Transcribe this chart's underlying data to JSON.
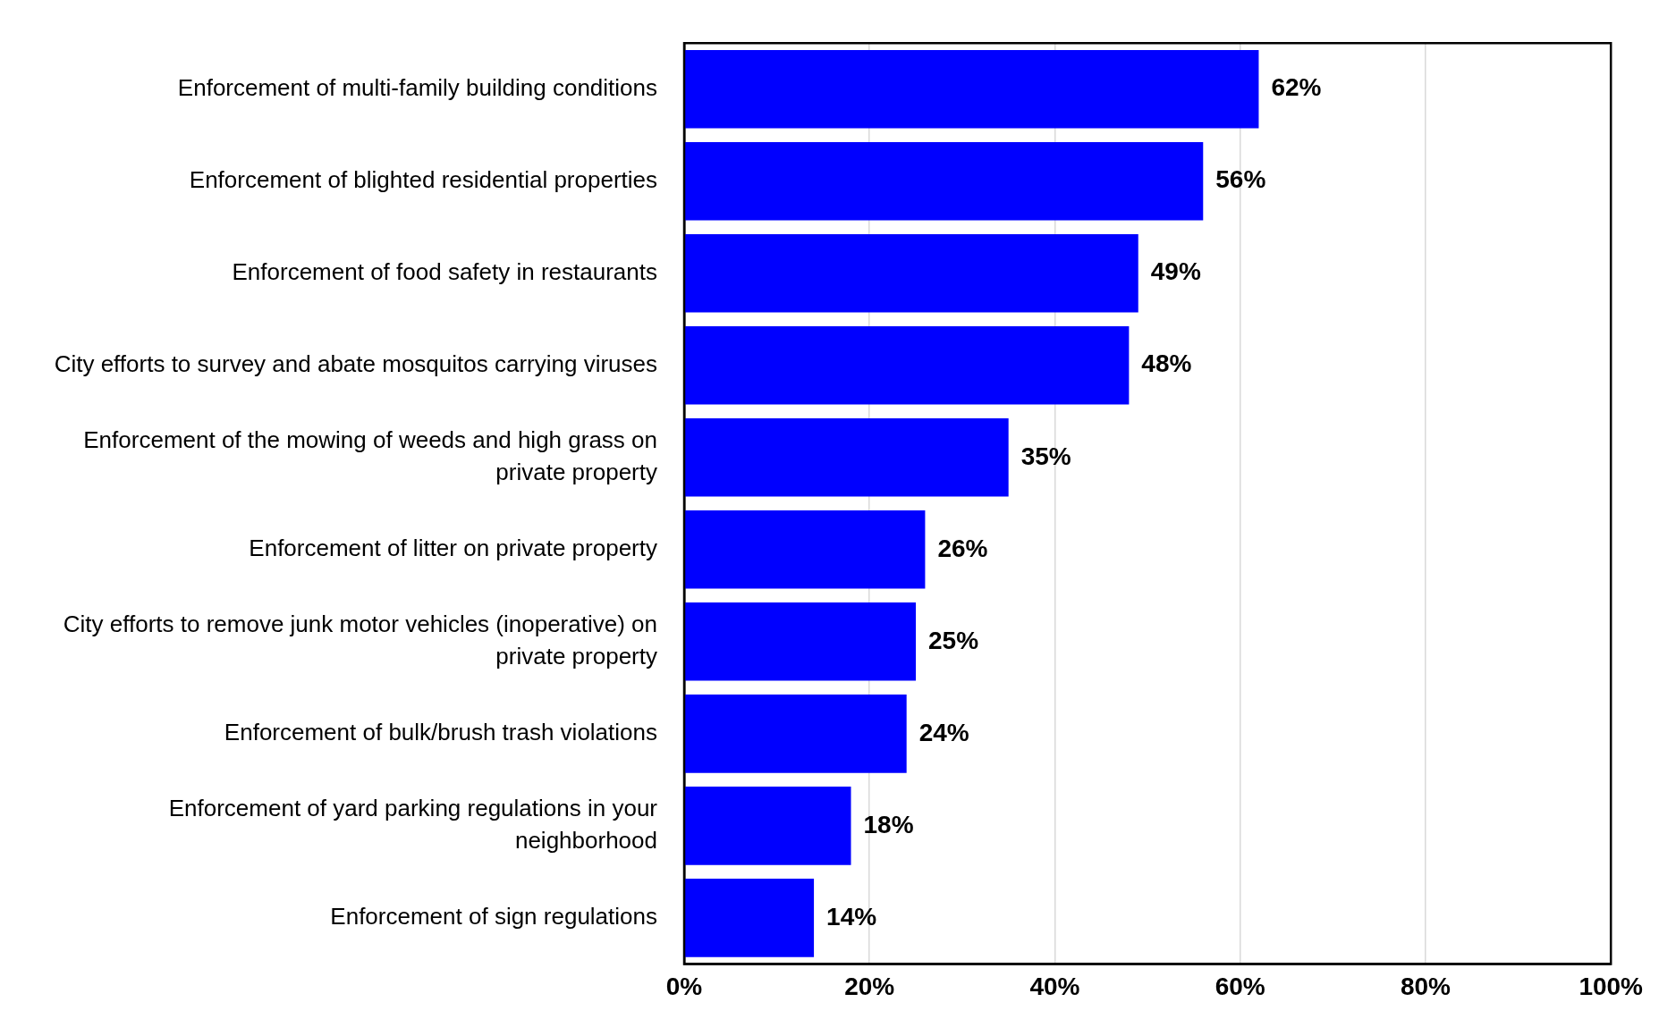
{
  "chart_data": {
    "type": "bar",
    "orientation": "horizontal",
    "categories": [
      "Enforcement of multi-family building conditions",
      "Enforcement of blighted residential properties",
      "Enforcement of food safety in restaurants",
      "City efforts to survey and abate mosquitos carrying viruses",
      "Enforcement of the mowing of weeds and high grass on private property",
      "Enforcement of litter on private property",
      "City efforts to remove junk motor vehicles (inoperative) on private property",
      "Enforcement of bulk/brush trash violations",
      "Enforcement of yard parking regulations in your neighborhood",
      "Enforcement of sign regulations"
    ],
    "values": [
      62,
      56,
      49,
      48,
      35,
      26,
      25,
      24,
      18,
      14
    ],
    "value_labels": [
      "62%",
      "56%",
      "49%",
      "48%",
      "35%",
      "26%",
      "25%",
      "24%",
      "18%",
      "14%"
    ],
    "color": "#0000ff",
    "xlim": [
      0,
      100
    ],
    "xticks": [
      {
        "value": 0,
        "label": "0%"
      },
      {
        "value": 20,
        "label": "20%"
      },
      {
        "value": 40,
        "label": "40%"
      },
      {
        "value": 60,
        "label": "60%"
      },
      {
        "value": 80,
        "label": "80%"
      },
      {
        "value": 100,
        "label": "100%"
      }
    ],
    "grid": "x",
    "legend": false
  }
}
